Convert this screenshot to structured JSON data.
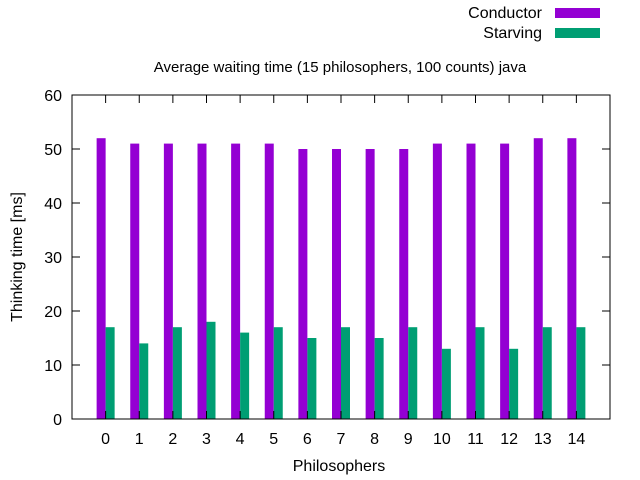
{
  "chart_data": {
    "type": "bar",
    "title": "Average waiting time (15 philosophers, 100 counts) java",
    "xlabel": "Philosophers",
    "ylabel": "Thinking time [ms]",
    "ylim": [
      0,
      60
    ],
    "yticks": [
      0,
      10,
      20,
      30,
      40,
      50,
      60
    ],
    "categories": [
      "0",
      "1",
      "2",
      "3",
      "4",
      "5",
      "6",
      "7",
      "8",
      "9",
      "10",
      "11",
      "12",
      "13",
      "14"
    ],
    "series": [
      {
        "name": "Conductor",
        "color": "#9400d3",
        "values": [
          52,
          51,
          51,
          51,
          51,
          51,
          50,
          50,
          50,
          50,
          51,
          51,
          51,
          52,
          52
        ]
      },
      {
        "name": "Starving",
        "color": "#009e73",
        "values": [
          17,
          14,
          17,
          18,
          16,
          17,
          15,
          17,
          15,
          17,
          13,
          17,
          13,
          17,
          17
        ]
      }
    ],
    "grid": false,
    "legend_position": "top-right"
  }
}
